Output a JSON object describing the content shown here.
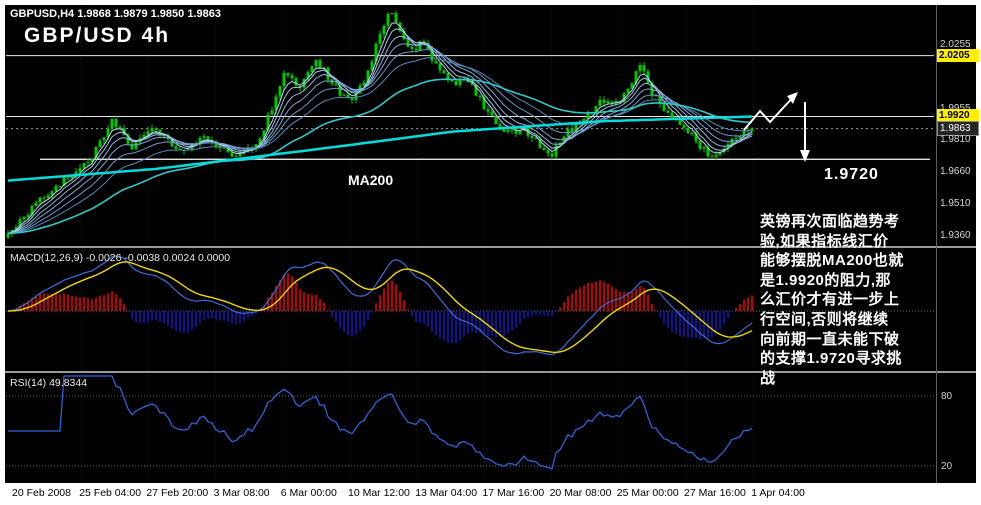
{
  "header": {
    "symbol_line": "GBPUSD,H4 1.9868 1.9879 1.9850 1.9863",
    "title": "GBP/USD 4h"
  },
  "annotations": {
    "ma200_label": "MA200",
    "support_label": "1.9720",
    "analysis_text": "英镑再次面临趋势考\n验,如果指标线汇价\n能够摆脱MA200也就\n是1.9920的阻力,那\n么汇价才有进一步上\n行空间,否则将继续\n向前期一直未能下破\n的支撑1.9720寻求挑\n战"
  },
  "macd_panel": {
    "label": "MACD(12,26,9) -0.0026 -0.0038 0.0024 0.0000",
    "current_values": [
      -0.0026,
      -0.0038,
      0.0024,
      0.0
    ]
  },
  "rsi_panel": {
    "label": "RSI(14) 49.8344",
    "current_value": 49.8344,
    "levels": [
      80,
      20
    ]
  },
  "colors": {
    "background": "#000000",
    "candle": "#00c800",
    "ema_ribbon": [
      "#c4dcff",
      "#aecdf5",
      "#98bdea",
      "#82aede",
      "#6c9fd2",
      "#5690c6"
    ],
    "ma55": "#30c8c8",
    "ma200": "#00dcdc",
    "hline": "#e8e8e8",
    "macd_pos": "#d40000",
    "macd_neg": "#1515a0",
    "macd_line": "#3c6cd8",
    "signal_line": "#f0d800",
    "rsi_line": "#2e62d9",
    "grid": "#1c1c2e",
    "level_dash": "#6a6a6a"
  },
  "chart_data": [
    {
      "type": "candlestick",
      "title": "GBP/USD 4h",
      "symbol": "GBPUSD",
      "timeframe": "H4",
      "ohlc_current": {
        "open": 1.9868,
        "high": 1.9879,
        "low": 1.985,
        "close": 1.9863
      },
      "last_price": 1.9863,
      "ylim": [
        1.9309,
        2.0442
      ],
      "price_axis_labels": [
        {
          "price": 2.0255,
          "style": "plain"
        },
        {
          "price": 2.0205,
          "style": "yellow"
        },
        {
          "price": 1.9955,
          "style": "plain"
        },
        {
          "price": 1.992,
          "style": "yellow"
        },
        {
          "price": 1.9863,
          "style": "current"
        },
        {
          "price": 1.981,
          "style": "plain"
        },
        {
          "price": 1.966,
          "style": "plain"
        },
        {
          "price": 1.951,
          "style": "plain"
        },
        {
          "price": 1.936,
          "style": "plain"
        }
      ],
      "hlines": [
        2.0205,
        1.992
      ],
      "current_price_line": 1.9863,
      "support": {
        "price": 1.972,
        "label": "1.9720"
      },
      "close_anchors": [
        [
          0.0,
          1.938
        ],
        [
          0.056,
          1.957
        ],
        [
          0.11,
          1.971
        ],
        [
          0.141,
          1.991
        ],
        [
          0.164,
          1.977
        ],
        [
          0.198,
          1.987
        ],
        [
          0.228,
          1.975
        ],
        [
          0.265,
          1.983
        ],
        [
          0.301,
          1.974
        ],
        [
          0.336,
          1.979
        ],
        [
          0.372,
          2.012
        ],
        [
          0.392,
          2.006
        ],
        [
          0.414,
          2.019
        ],
        [
          0.435,
          2.008
        ],
        [
          0.456,
          1.999
        ],
        [
          0.476,
          2.006
        ],
        [
          0.496,
          2.026
        ],
        [
          0.513,
          2.041
        ],
        [
          0.53,
          2.03
        ],
        [
          0.544,
          2.022
        ],
        [
          0.559,
          2.028
        ],
        [
          0.577,
          2.014
        ],
        [
          0.597,
          2.007
        ],
        [
          0.616,
          2.011
        ],
        [
          0.636,
          1.999
        ],
        [
          0.656,
          1.988
        ],
        [
          0.675,
          1.984
        ],
        [
          0.694,
          1.986
        ],
        [
          0.712,
          1.979
        ],
        [
          0.731,
          1.974
        ],
        [
          0.75,
          1.984
        ],
        [
          0.772,
          1.99
        ],
        [
          0.796,
          1.999
        ],
        [
          0.815,
          1.997
        ],
        [
          0.835,
          2.004
        ],
        [
          0.848,
          2.018
        ],
        [
          0.863,
          2.004
        ],
        [
          0.879,
          1.997
        ],
        [
          0.898,
          1.991
        ],
        [
          0.917,
          1.984
        ],
        [
          0.933,
          1.977
        ],
        [
          0.946,
          1.972
        ],
        [
          0.962,
          1.976
        ],
        [
          0.981,
          1.983
        ],
        [
          1.0,
          1.9863
        ]
      ],
      "ma200_anchors": [
        [
          0.0,
          1.962
        ],
        [
          0.2,
          1.9675
        ],
        [
          0.4,
          1.976
        ],
        [
          0.6,
          1.985
        ],
        [
          0.8,
          1.9898
        ],
        [
          1.0,
          1.992
        ]
      ],
      "ema_ribbon_periods": [
        4,
        6,
        9,
        13,
        19,
        28
      ],
      "ma55_period": 55,
      "x_labels": [
        "20 Feb 2008",
        "25 Feb 04:00",
        "27 Feb 20:00",
        "3 Mar 08:00",
        "6 Mar 00:00",
        "10 Mar 12:00",
        "13 Mar 04:00",
        "17 Mar 16:00",
        "20 Mar 08:00",
        "25 Mar 00:00",
        "27 Mar 16:00",
        "1 Apr 04:00"
      ]
    },
    {
      "type": "macd",
      "label": "MACD(12,26,9) -0.0026 -0.0038 0.0024 0.0000",
      "fast": 12,
      "slow": 26,
      "signal": 9,
      "current": {
        "macd": -0.0026,
        "signal": -0.0038,
        "histogram": 0.0024,
        "zero": 0.0
      }
    },
    {
      "type": "rsi",
      "label": "RSI(14) 49.8344",
      "period": 14,
      "value": 49.8344,
      "levels": [
        80,
        20
      ]
    }
  ]
}
